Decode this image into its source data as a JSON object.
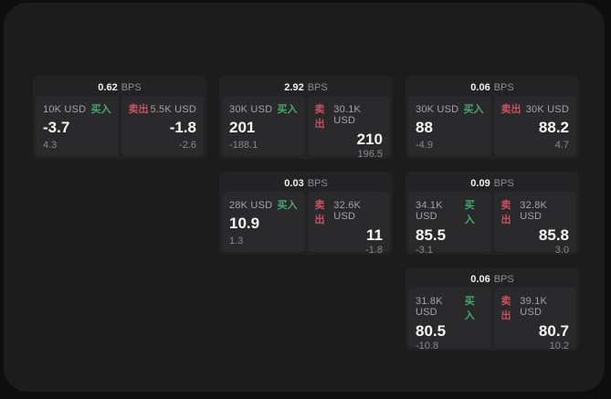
{
  "labels": {
    "bps_unit": "BPS",
    "buy": "买入",
    "sell": "卖出"
  },
  "colors": {
    "backdrop": "#0e0e0f",
    "surface": "#1c1c1d",
    "card": "#232325",
    "panel": "#2a2a2c",
    "buy_green": "#47a76c",
    "sell_red": "#c85063",
    "price_text": "#f7f7f7",
    "muted_text": "#a4a4a6"
  },
  "cards": [
    {
      "bps": "0.62",
      "buy": {
        "amount": "10K USD",
        "price": "-3.7",
        "delta": "4.3"
      },
      "sell": {
        "amount": "5.5K USD",
        "price": "-1.8",
        "delta": "-2.6"
      }
    },
    {
      "bps": "2.92",
      "buy": {
        "amount": "30K USD",
        "price": "201",
        "delta": "-188.1"
      },
      "sell": {
        "amount": "30.1K USD",
        "price": "210",
        "delta": "196.5"
      }
    },
    {
      "bps": "0.06",
      "buy": {
        "amount": "30K USD",
        "price": "88",
        "delta": "-4.9"
      },
      "sell": {
        "amount": "30K USD",
        "price": "88.2",
        "delta": "4.7"
      }
    },
    {
      "bps": "0.03",
      "buy": {
        "amount": "28K USD",
        "price": "10.9",
        "delta": "1.3"
      },
      "sell": {
        "amount": "32.6K USD",
        "price": "11",
        "delta": "-1.8"
      }
    },
    {
      "bps": "0.09",
      "buy": {
        "amount": "34.1K USD",
        "price": "85.5",
        "delta": "-3.1"
      },
      "sell": {
        "amount": "32.8K USD",
        "price": "85.8",
        "delta": "3.0"
      }
    },
    {
      "bps": "0.06",
      "buy": {
        "amount": "31.8K USD",
        "price": "80.5",
        "delta": "-10.8"
      },
      "sell": {
        "amount": "39.1K USD",
        "price": "80.7",
        "delta": "10.2"
      }
    }
  ]
}
